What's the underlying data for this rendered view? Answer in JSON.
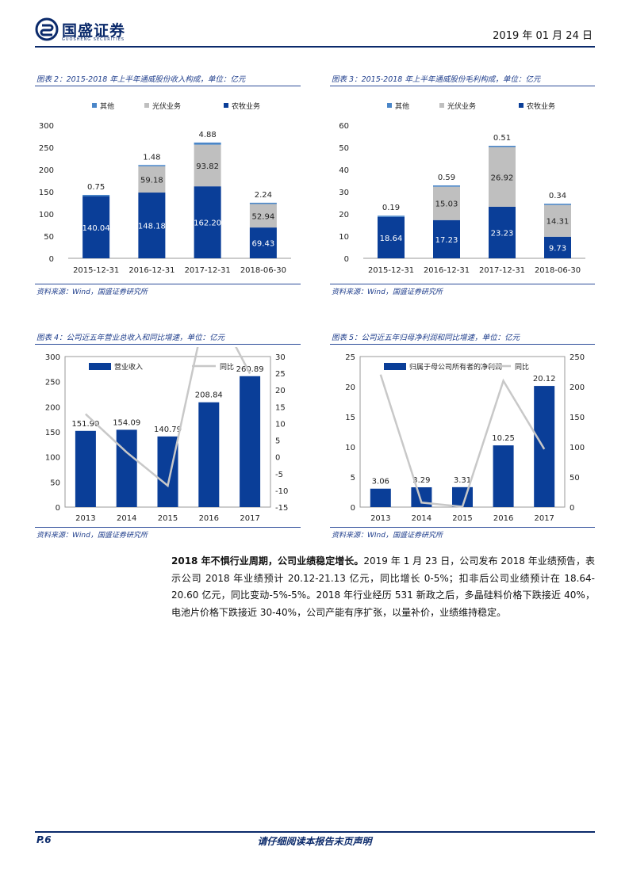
{
  "header": {
    "logo_text": "国盛证券",
    "logo_sub": "GUOSHENG SECURITIES",
    "date": "2019 年 01 月 24 日"
  },
  "colors": {
    "dark_blue": "#0a3e98",
    "gray": "#bfbfbf",
    "light_blue": "#4a86c8",
    "line_gray": "#c8c8c8"
  },
  "figures": [
    {
      "title": "图表 2：2015-2018 年上半年通威股份收入构成，单位：亿元",
      "source": "资料来源：Wind，国盛证券研究所",
      "chart_data": {
        "type": "bar",
        "stacked": true,
        "categories": [
          "2015-12-31",
          "2016-12-31",
          "2017-12-31",
          "2018-06-30"
        ],
        "series": [
          {
            "name": "农牧业务",
            "values": [
              140.04,
              148.18,
              162.2,
              69.43
            ]
          },
          {
            "name": "光伏业务",
            "values": [
              0,
              59.18,
              93.82,
              52.94
            ]
          },
          {
            "name": "其他",
            "values": [
              0.75,
              1.48,
              4.88,
              2.24
            ]
          }
        ],
        "legend_order": [
          "其他",
          "光伏业务",
          "农牧业务"
        ],
        "labels": {
          "农牧业务": [
            "140.04",
            "148.18",
            "162.20",
            "69.43"
          ],
          "光伏业务": [
            "",
            "59.18",
            "93.82",
            "52.94"
          ],
          "其他": [
            "0.75",
            "1.48",
            "4.88",
            "2.24"
          ]
        },
        "yticks": [
          "0",
          "50",
          "100",
          "150",
          "200",
          "250",
          "300"
        ],
        "ylim": [
          0,
          300
        ],
        "legend_position": "top"
      }
    },
    {
      "title": "图表 3：2015-2018 年上半年通威股份毛利构成，单位：亿元",
      "source": "资料来源：Wind，国盛证券研究所",
      "chart_data": {
        "type": "bar",
        "stacked": true,
        "categories": [
          "2015-12-31",
          "2016-12-31",
          "2017-12-31",
          "2018-06-30"
        ],
        "series": [
          {
            "name": "农牧业务",
            "values": [
              18.64,
              17.23,
              23.23,
              9.73
            ]
          },
          {
            "name": "光伏业务",
            "values": [
              0,
              15.03,
              26.92,
              14.31
            ]
          },
          {
            "name": "其他",
            "values": [
              0.19,
              0.59,
              0.51,
              0.34
            ]
          }
        ],
        "legend_order": [
          "其他",
          "光伏业务",
          "农牧业务"
        ],
        "labels": {
          "农牧业务": [
            "18.64",
            "17.23",
            "23.23",
            "9.73"
          ],
          "光伏业务": [
            "",
            "15.03",
            "26.92",
            "14.31"
          ],
          "其他": [
            "0.19",
            "0.59",
            "0.51",
            "0.34"
          ]
        },
        "yticks": [
          "0",
          "10",
          "20",
          "30",
          "40",
          "50",
          "60"
        ],
        "ylim": [
          0,
          60
        ],
        "legend_position": "top"
      }
    },
    {
      "title": "图表 4：公司近五年营业总收入和同比增速，单位：亿元",
      "source": "资料来源：Wind，国盛证券研究所",
      "chart_data": {
        "type": "bar",
        "categories": [
          "2013",
          "2014",
          "2015",
          "2016",
          "2017"
        ],
        "series": [
          {
            "name": "营业收入",
            "type": "bar",
            "axis": "left",
            "values": [
              151.9,
              154.09,
              140.79,
              208.84,
              260.89
            ]
          },
          {
            "name": "同比",
            "type": "line",
            "axis": "right",
            "values": [
              12.8,
              1.4,
              -8.6,
              48.3,
              24.9
            ]
          }
        ],
        "bar_labels": [
          "151.90",
          "154.09",
          "140.79",
          "208.84",
          "260.89"
        ],
        "yticks": [
          "0",
          "50",
          "100",
          "150",
          "200",
          "250",
          "300"
        ],
        "ylim": [
          0,
          300
        ],
        "y2ticks": [
          "-15",
          "-10",
          "-5",
          "0",
          "5",
          "10",
          "15",
          "20",
          "25",
          "30"
        ],
        "y2lim": [
          -15,
          30
        ],
        "legend_position": "top-left"
      }
    },
    {
      "title": "图表 5：公司近五年归母净利润和同比增速，单位：亿元",
      "source": "资料来源：WInd，国盛证券研究所",
      "chart_data": {
        "type": "bar",
        "categories": [
          "2013",
          "2014",
          "2015",
          "2016",
          "2017"
        ],
        "series": [
          {
            "name": "归属于母公司所有者的净利润",
            "type": "bar",
            "axis": "left",
            "values": [
              3.06,
              3.29,
              3.31,
              10.25,
              20.12
            ]
          },
          {
            "name": "同比",
            "type": "line",
            "axis": "right",
            "values": [
              220,
              7.5,
              0.6,
              209.7,
              96.3
            ]
          }
        ],
        "bar_labels": [
          "3.06",
          "3.29",
          "3.31",
          "10.25",
          "20.12"
        ],
        "yticks": [
          "0",
          "5",
          "10",
          "15",
          "20",
          "25"
        ],
        "ylim": [
          0,
          25
        ],
        "y2ticks": [
          "0",
          "50",
          "100",
          "150",
          "200",
          "250"
        ],
        "y2lim": [
          0,
          250
        ],
        "legend_position": "top-left"
      }
    }
  ],
  "paragraph": {
    "lead": "2018 年不惧行业周期，公司业绩稳定增长。",
    "body": "2019 年 1 月 23 日，公司发布 2018 年业绩预告，表示公司 2018 年业绩预计 20.12-21.13 亿元，同比增长 0-5%；扣非后公司业绩预计在 18.64-20.60 亿元，同比变动-5%-5%。2018 年行业经历 531 新政之后，多晶硅料价格下跌接近 40%，电池片价格下跌接近 30-40%，公司产能有序扩张，以量补价，业绩维持稳定。"
  },
  "footer": {
    "page": "P.6",
    "note": "请仔细阅读本报告末页声明"
  }
}
